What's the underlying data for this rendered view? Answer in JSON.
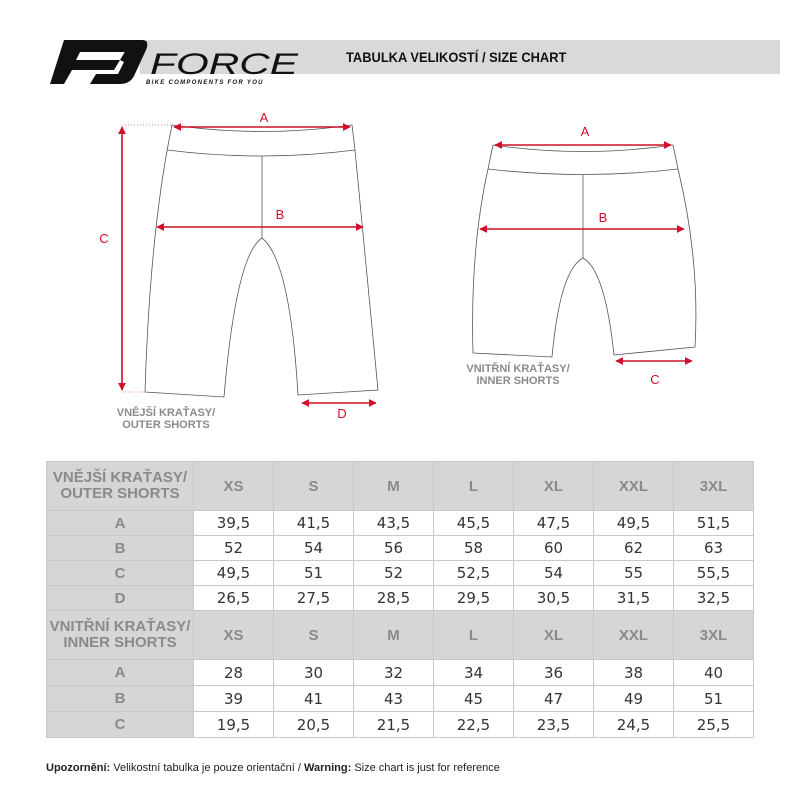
{
  "header": {
    "brand": "FORCE",
    "tagline": "BIKE COMPONENTS FOR YOU",
    "title": "TABULKA VELIKOSTÍ / SIZE CHART"
  },
  "diagrams": {
    "outer": {
      "caption_line1": "VNĚJŠÍ KRAŤASY/",
      "caption_line2": "OUTER SHORTS",
      "labels": {
        "a": "A",
        "b": "B",
        "c": "C",
        "d": "D"
      }
    },
    "inner": {
      "caption_line1": "VNITŘNÍ KRAŤASY/",
      "caption_line2": "INNER SHORTS",
      "labels": {
        "a": "A",
        "b": "B",
        "c": "C"
      }
    }
  },
  "colors": {
    "accent": "#d0102a",
    "header_gray": "#d6d6d6"
  },
  "table": {
    "sizes": [
      "XS",
      "S",
      "M",
      "L",
      "XL",
      "XXL",
      "3XL"
    ],
    "outer": {
      "title_line1": "VNĚJŠÍ KRAŤASY/",
      "title_line2": "OUTER SHORTS",
      "rows": [
        {
          "label": "A",
          "values": [
            "39,5",
            "41,5",
            "43,5",
            "45,5",
            "47,5",
            "49,5",
            "51,5"
          ]
        },
        {
          "label": "B",
          "values": [
            "52",
            "54",
            "56",
            "58",
            "60",
            "62",
            "63"
          ]
        },
        {
          "label": "C",
          "values": [
            "49,5",
            "51",
            "52",
            "52,5",
            "54",
            "55",
            "55,5"
          ]
        },
        {
          "label": "D",
          "values": [
            "26,5",
            "27,5",
            "28,5",
            "29,5",
            "30,5",
            "31,5",
            "32,5"
          ]
        }
      ]
    },
    "inner": {
      "title_line1": "VNITŘNÍ KRAŤASY/",
      "title_line2": "INNER SHORTS",
      "rows": [
        {
          "label": "A",
          "values": [
            "28",
            "30",
            "32",
            "34",
            "36",
            "38",
            "40"
          ]
        },
        {
          "label": "B",
          "values": [
            "39",
            "41",
            "43",
            "45",
            "47",
            "49",
            "51"
          ]
        },
        {
          "label": "C",
          "values": [
            "19,5",
            "20,5",
            "21,5",
            "22,5",
            "23,5",
            "24,5",
            "25,5"
          ]
        }
      ]
    }
  },
  "footer": {
    "warning_cz_label": "Upozornění:",
    "warning_cz_text": " Velikostní tabulka je pouze orientační / ",
    "warning_en_label": "Warning:",
    "warning_en_text": " Size chart is just for reference"
  }
}
